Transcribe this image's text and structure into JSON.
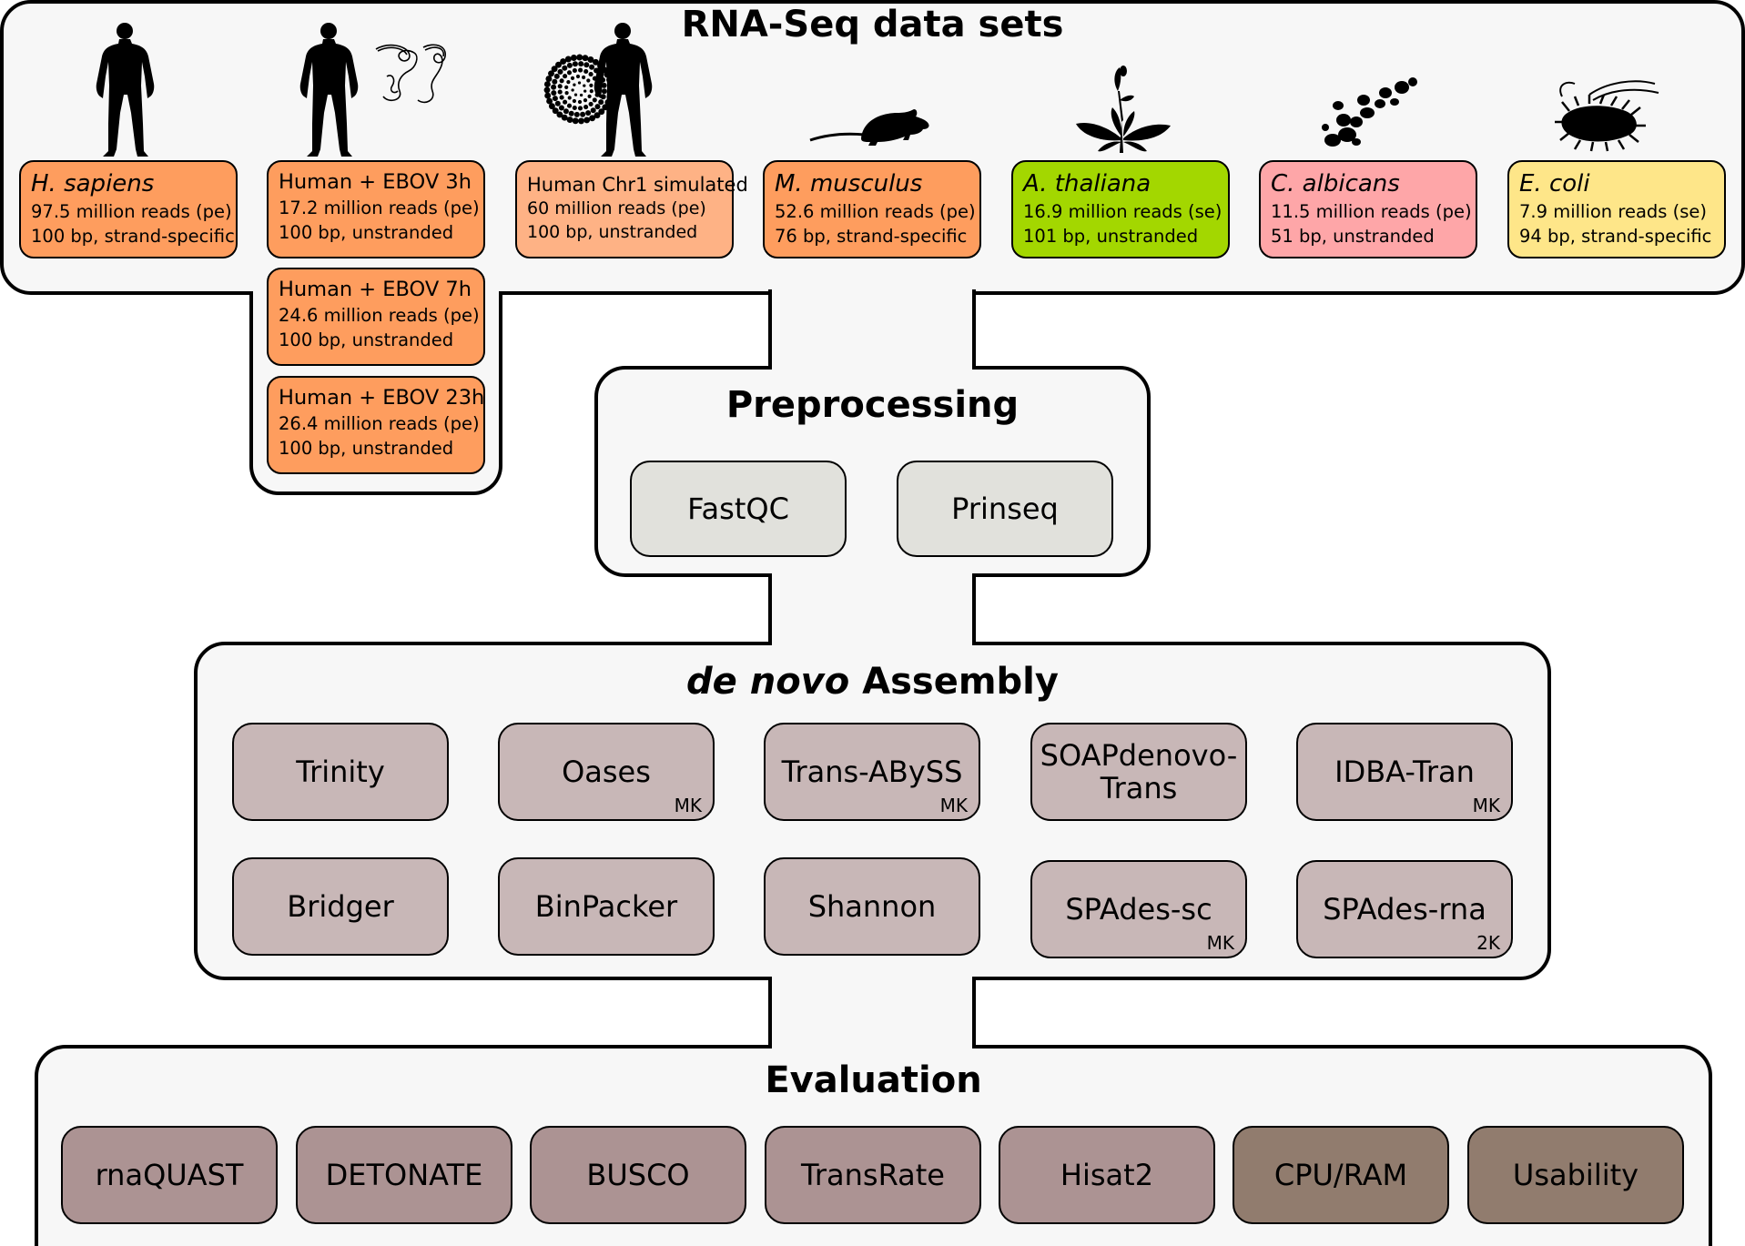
{
  "datasets": {
    "title": "RNA-Seq data sets",
    "items": [
      {
        "name": "H. sapiens",
        "reads": "97.5 million reads (pe)",
        "info": "100 bp, strand-specific",
        "color": "#fe9d5e"
      },
      {
        "name": "Human + EBOV 3h",
        "reads": "17.2 million reads (pe)",
        "info": "100 bp, unstranded",
        "color": "#fe9d5e"
      },
      {
        "name": "Human + EBOV 7h",
        "reads": "24.6 million reads (pe)",
        "info": "100 bp, unstranded",
        "color": "#fe9d5e"
      },
      {
        "name": "Human + EBOV 23h",
        "reads": "26.4 million reads (pe)",
        "info": "100 bp, unstranded",
        "color": "#fe9d5e"
      },
      {
        "name": "Human Chr1 simulated",
        "reads": "60 million reads (pe)",
        "info": "100 bp, unstranded",
        "color": "#feb285"
      },
      {
        "name": "M. musculus",
        "reads": "52.6 million reads (pe)",
        "info": "76 bp, strand-specific",
        "color": "#fe9d5e"
      },
      {
        "name": "A. thaliana",
        "reads": "16.9 million reads (se)",
        "info": "101 bp, unstranded",
        "color": "#a3d700"
      },
      {
        "name": "C. albicans",
        "reads": "11.5 million reads (pe)",
        "info": "51 bp, unstranded",
        "color": "#fea6a8"
      },
      {
        "name": "E. coli",
        "reads": "7.9 million reads (se)",
        "info": "94 bp, strand-specific",
        "color": "#fee689"
      }
    ]
  },
  "preprocessing": {
    "title": "Preprocessing",
    "tools": [
      "FastQC",
      "Prinseq"
    ]
  },
  "assembly": {
    "title_italic": "de novo",
    "title_rest": " Assembly",
    "tools": [
      {
        "name": "Trinity",
        "tag": ""
      },
      {
        "name": "Oases",
        "tag": "MK"
      },
      {
        "name": "Trans-ABySS",
        "tag": "MK"
      },
      {
        "name": "SOAPdenovo-",
        "name2": "Trans",
        "tag": ""
      },
      {
        "name": "IDBA-Tran",
        "tag": "MK"
      },
      {
        "name": "Bridger",
        "tag": ""
      },
      {
        "name": "BinPacker",
        "tag": ""
      },
      {
        "name": "Shannon",
        "tag": ""
      },
      {
        "name": "SPAdes-sc",
        "tag": "MK"
      },
      {
        "name": "SPAdes-rna",
        "tag": "2K"
      }
    ]
  },
  "evaluation": {
    "title": "Evaluation",
    "tools": [
      "rnaQUAST",
      "DETONATE",
      "BUSCO",
      "TransRate",
      "Hisat2",
      "CPU/RAM",
      "Usability"
    ]
  },
  "icons": [
    "human-icon",
    "ebola-virus-icon",
    "simulation-icon",
    "mouse-icon",
    "arabidopsis-plant-icon",
    "candida-yeast-icon",
    "ecoli-bacterium-icon"
  ]
}
